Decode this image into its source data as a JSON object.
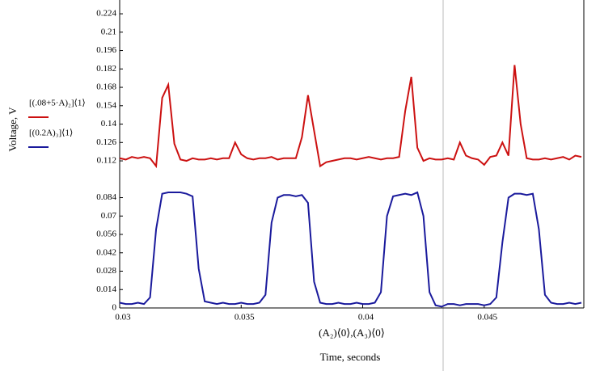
{
  "chart_data": {
    "type": "line",
    "y_label": "Voltage, V",
    "x_label": "(A₂)⟨0⟩,(A₃)⟨0⟩",
    "x_title": "Time, seconds",
    "xlim": [
      0.03,
      0.0491
    ],
    "ylim": [
      0,
      0.2345
    ],
    "xticks": [
      0.03,
      0.035,
      0.04,
      0.045
    ],
    "yticks": [
      0,
      0.014,
      0.028,
      0.042,
      0.056,
      0.07,
      0.084,
      0.112,
      0.126,
      0.14,
      0.154,
      0.168,
      0.182,
      0.196,
      0.21,
      0.224
    ],
    "x": [
      0.03,
      0.03025,
      0.0305,
      0.03075,
      0.031,
      0.03125,
      0.0315,
      0.03175,
      0.032,
      0.03225,
      0.0325,
      0.03275,
      0.033,
      0.03325,
      0.0335,
      0.03375,
      0.034,
      0.03425,
      0.0345,
      0.03475,
      0.035,
      0.03525,
      0.0355,
      0.03575,
      0.036,
      0.03625,
      0.0365,
      0.03675,
      0.037,
      0.03725,
      0.0375,
      0.03775,
      0.038,
      0.03825,
      0.0385,
      0.03875,
      0.039,
      0.03925,
      0.0395,
      0.03975,
      0.04,
      0.04025,
      0.0405,
      0.04075,
      0.041,
      0.04125,
      0.0415,
      0.04175,
      0.042,
      0.04225,
      0.0425,
      0.04275,
      0.043,
      0.04325,
      0.0435,
      0.04375,
      0.044,
      0.04425,
      0.0445,
      0.04475,
      0.045,
      0.04525,
      0.0455,
      0.04575,
      0.046,
      0.04625,
      0.0465,
      0.04675,
      0.047,
      0.04725,
      0.0475,
      0.04775,
      0.048,
      0.04825,
      0.0485,
      0.04875,
      0.049
    ],
    "series": [
      {
        "name": "[(.08+5·A)₂]⟨1⟩",
        "color": "#cc1111",
        "values": [
          0.114,
          0.113,
          0.115,
          0.114,
          0.115,
          0.114,
          0.108,
          0.16,
          0.17,
          0.125,
          0.113,
          0.112,
          0.114,
          0.113,
          0.113,
          0.114,
          0.113,
          0.114,
          0.114,
          0.126,
          0.117,
          0.114,
          0.113,
          0.114,
          0.114,
          0.115,
          0.113,
          0.114,
          0.114,
          0.114,
          0.13,
          0.162,
          0.135,
          0.108,
          0.111,
          0.112,
          0.113,
          0.114,
          0.114,
          0.113,
          0.114,
          0.115,
          0.114,
          0.113,
          0.114,
          0.114,
          0.115,
          0.15,
          0.176,
          0.122,
          0.112,
          0.114,
          0.113,
          0.113,
          0.114,
          0.113,
          0.126,
          0.116,
          0.114,
          0.113,
          0.109,
          0.115,
          0.116,
          0.126,
          0.116,
          0.185,
          0.14,
          0.114,
          0.113,
          0.113,
          0.114,
          0.113,
          0.114,
          0.115,
          0.113,
          0.116,
          0.115
        ]
      },
      {
        "name": "[(0.2A)₃]⟨1⟩",
        "color": "#1a1a9c",
        "values": [
          0.004,
          0.003,
          0.003,
          0.004,
          0.003,
          0.008,
          0.06,
          0.087,
          0.088,
          0.088,
          0.088,
          0.087,
          0.085,
          0.03,
          0.005,
          0.004,
          0.003,
          0.004,
          0.003,
          0.003,
          0.004,
          0.003,
          0.003,
          0.004,
          0.01,
          0.065,
          0.084,
          0.086,
          0.086,
          0.085,
          0.086,
          0.08,
          0.02,
          0.004,
          0.003,
          0.003,
          0.004,
          0.003,
          0.003,
          0.004,
          0.003,
          0.003,
          0.004,
          0.012,
          0.07,
          0.085,
          0.086,
          0.087,
          0.086,
          0.088,
          0.07,
          0.012,
          0.002,
          0.001,
          0.003,
          0.003,
          0.002,
          0.003,
          0.003,
          0.003,
          0.002,
          0.003,
          0.008,
          0.05,
          0.084,
          0.087,
          0.087,
          0.086,
          0.087,
          0.06,
          0.01,
          0.004,
          0.003,
          0.003,
          0.004,
          0.003,
          0.004
        ]
      }
    ]
  }
}
